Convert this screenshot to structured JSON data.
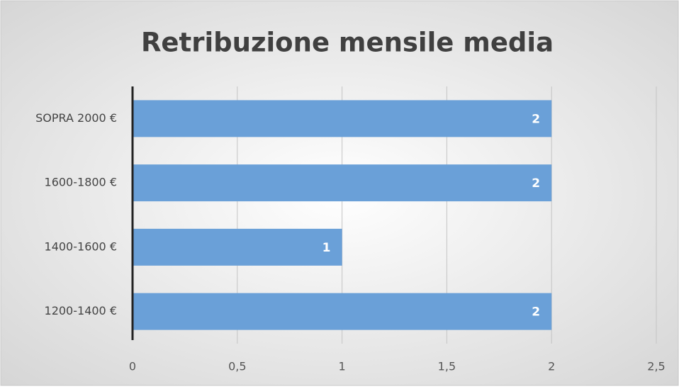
{
  "chart_data": {
    "type": "hbar",
    "title": "Retribuzione mensile  media",
    "categories": [
      "SOPRA 2000 €",
      "1600-1800 €",
      "1400-1600 €",
      "1200-1400 €"
    ],
    "values": [
      2,
      2,
      1,
      2
    ],
    "color": "#6aa0d8",
    "xlim": [
      0,
      2.5
    ],
    "xticks": [
      0,
      {
        "value": 0.5,
        "label": "0,5"
      },
      1,
      {
        "value": 1.5,
        "label": "1,5"
      },
      2,
      {
        "value": 2.5,
        "label": "2,5"
      }
    ],
    "grid": true
  }
}
